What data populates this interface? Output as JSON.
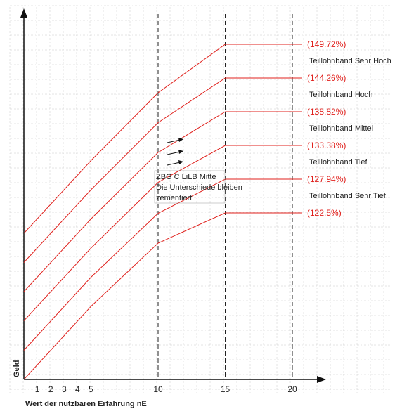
{
  "chart_data": {
    "type": "line",
    "xlabel": "Wert der nutzbaren Erfahrung nE",
    "ylabel": "Geld",
    "x_ticks": [
      "1",
      "2",
      "3",
      "4",
      "5",
      "10",
      "15",
      "20"
    ],
    "dashed_x": [
      5,
      10,
      15,
      20
    ],
    "grid": true,
    "x": [
      0,
      5,
      10,
      15,
      20
    ],
    "series": [
      {
        "values": [
          0,
          20.8,
          38.8,
          47.4,
          47.4
        ]
      },
      {
        "values": [
          8.3,
          29.1,
          47.3,
          57.0,
          57.0
        ]
      },
      {
        "values": [
          16.7,
          37.4,
          56.1,
          66.6,
          66.6
        ]
      },
      {
        "values": [
          25.0,
          45.7,
          64.6,
          76.2,
          76.2
        ]
      },
      {
        "values": [
          33.3,
          54.0,
          73.1,
          85.8,
          85.8
        ]
      },
      {
        "values": [
          41.6,
          62.3,
          81.6,
          95.4,
          95.4
        ]
      }
    ],
    "end_labels": [
      "(122.5%)",
      "(127.94%)",
      "(133.38%)",
      "(138.82%)",
      "(144.26%)",
      "(149.72%)"
    ],
    "band_labels": [
      "Teillohnband Sehr Tief",
      "Teillohnband Tief",
      "Teillohnband Mittel",
      "Teillohnband Hoch",
      "Teillohnband Sehr Hoch"
    ],
    "annotation_lines": [
      "ZBG C LiLB Mitte",
      "Die Unterschiede bleiben",
      "zementiert"
    ],
    "colors": {
      "line": "#e0201c",
      "grid": "#c8c8c8",
      "axis": "#111111",
      "dashed": "#222222"
    }
  }
}
